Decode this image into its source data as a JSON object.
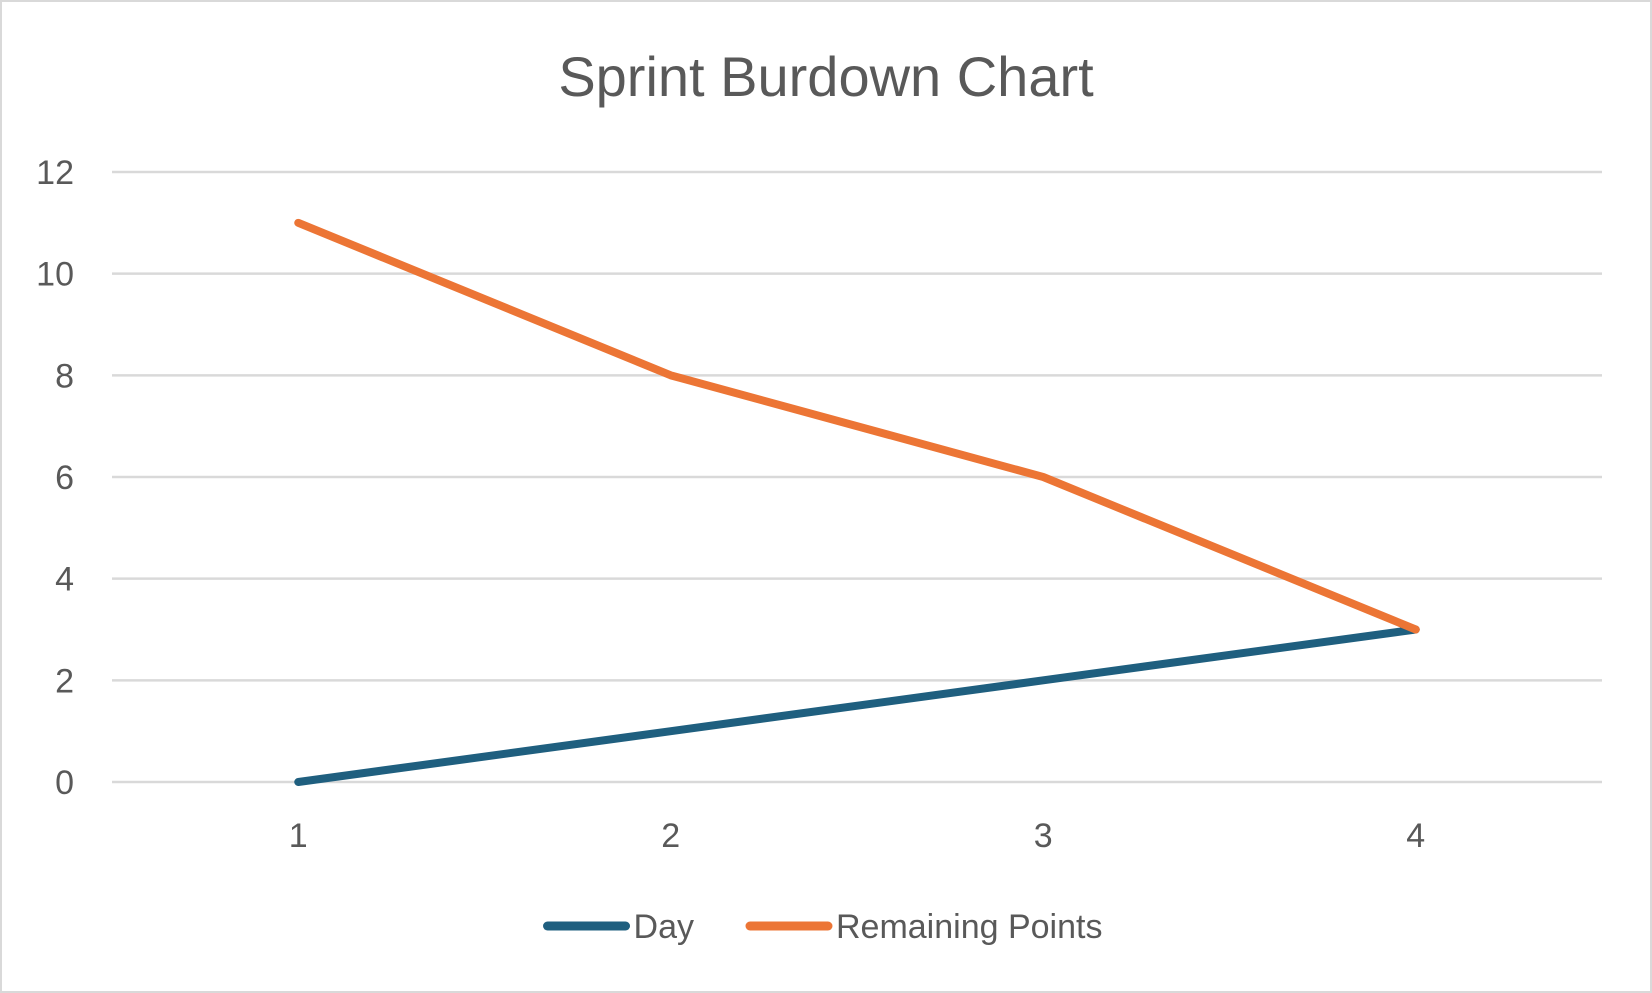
{
  "chart_data": {
    "type": "line",
    "title": "Sprint Burdown Chart",
    "xlabel": "",
    "ylabel": "",
    "categories": [
      "1",
      "2",
      "3",
      "4"
    ],
    "ylim": [
      0,
      12
    ],
    "y_ticks": [
      0,
      2,
      4,
      6,
      8,
      10,
      12
    ],
    "grid": true,
    "legend_position": "bottom",
    "series": [
      {
        "name": "Day",
        "values": [
          0,
          1,
          2,
          3
        ],
        "color": "#1f5f7f"
      },
      {
        "name": "Remaining Points",
        "values": [
          11,
          8,
          6,
          3
        ],
        "color": "#ec7535"
      }
    ]
  }
}
